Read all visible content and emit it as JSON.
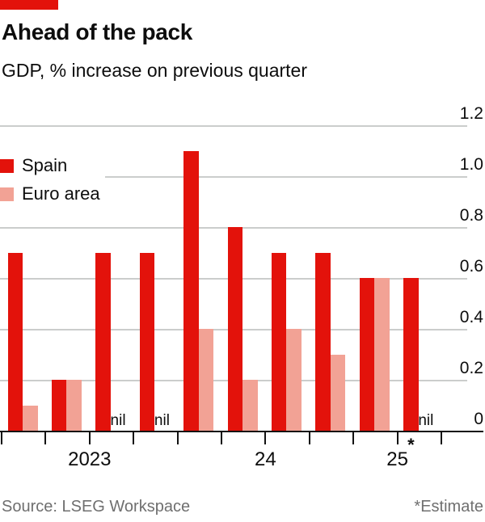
{
  "accent_color": "#e3120b",
  "header": {
    "title": "Ahead of the pack",
    "subtitle": "GDP, % increase on previous quarter"
  },
  "chart_data": {
    "type": "bar",
    "categories": [
      "2023 Q1",
      "2023 Q2",
      "2023 Q3",
      "2023 Q4",
      "2024 Q1",
      "2024 Q2",
      "2024 Q3",
      "2024 Q4",
      "2025 Q1",
      "2025 Q2"
    ],
    "series": [
      {
        "name": "Spain",
        "color": "#e3120b",
        "values": [
          0.7,
          0.2,
          0.7,
          0.7,
          1.1,
          0.8,
          0.7,
          0.7,
          0.6,
          0.6
        ]
      },
      {
        "name": "Euro area",
        "color": "#f2a295",
        "values": [
          0.1,
          0.2,
          0,
          0,
          0.4,
          0.2,
          0.4,
          0.3,
          0.6,
          0
        ]
      }
    ],
    "zero_label": "nil",
    "y_ticks": [
      "0",
      "0.2",
      "0.4",
      "0.6",
      "0.8",
      "1.0",
      "1.2"
    ],
    "ylim": [
      0,
      1.2
    ],
    "x_axis_labels": [
      {
        "text": "2023",
        "from": 0,
        "to": 3
      },
      {
        "text": "24",
        "from": 4,
        "to": 7
      },
      {
        "text": "25",
        "from": 8,
        "to": 9
      }
    ],
    "estimate_marker": "*",
    "estimate_category_index": 9,
    "grid": true,
    "legend_position": "inside-top-left",
    "gridline_color": "#cbcdcc",
    "axis_color": "#121212"
  },
  "footer": {
    "source": "Source: LSEG Workspace",
    "note": "*Estimate"
  }
}
